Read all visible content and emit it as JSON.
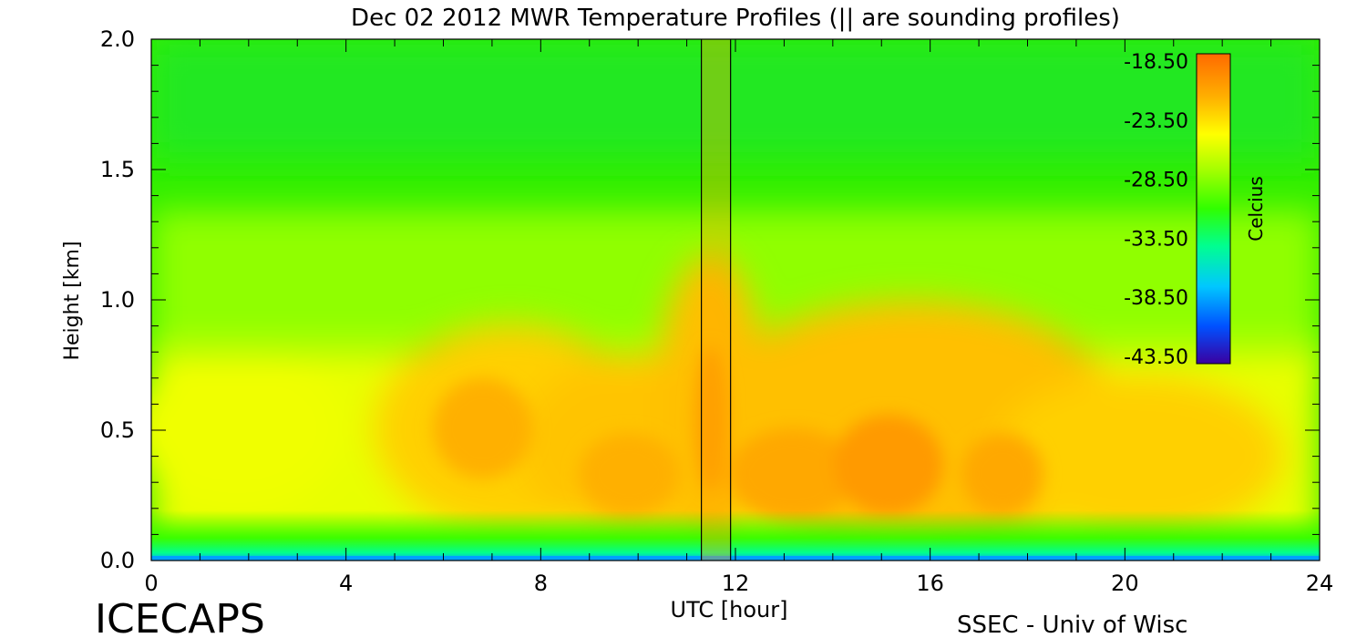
{
  "chart_data": {
    "type": "heatmap",
    "title": "Dec 02 2012 MWR Temperature Profiles (|| are sounding profiles)",
    "xlabel": "UTC [hour]",
    "ylabel": "Height [km]",
    "xlim": [
      0,
      24
    ],
    "ylim": [
      0,
      2.0
    ],
    "x_ticks": [
      "0",
      "4",
      "8",
      "12",
      "16",
      "20",
      "24"
    ],
    "y_ticks": [
      "0.0",
      "0.5",
      "1.0",
      "1.5",
      "2.0"
    ],
    "x_tick_values": [
      0,
      4,
      8,
      12,
      16,
      20,
      24
    ],
    "y_tick_values": [
      0,
      0.5,
      1.0,
      1.5,
      2.0
    ],
    "colorbar": {
      "label": "Celcius",
      "range": [
        -43.5,
        -18.5
      ],
      "tick_labels": [
        "-18.50",
        "-23.50",
        "-28.50",
        "-33.50",
        "-38.50",
        "-43.50"
      ],
      "tick_values": [
        -18.5,
        -23.5,
        -28.5,
        -33.5,
        -38.5,
        -43.5
      ],
      "colors": [
        "#3a00a0",
        "#0050ff",
        "#00c8ff",
        "#00ff90",
        "#30ff00",
        "#80ff00",
        "#d8ff00",
        "#ffff00",
        "#ffc000",
        "#ff9000",
        "#ff6a00"
      ]
    },
    "sounding_times": [
      11.3,
      11.9
    ],
    "grid": false
  },
  "footer": {
    "left": "ICECAPS",
    "right": "SSEC - Univ of Wisc"
  }
}
